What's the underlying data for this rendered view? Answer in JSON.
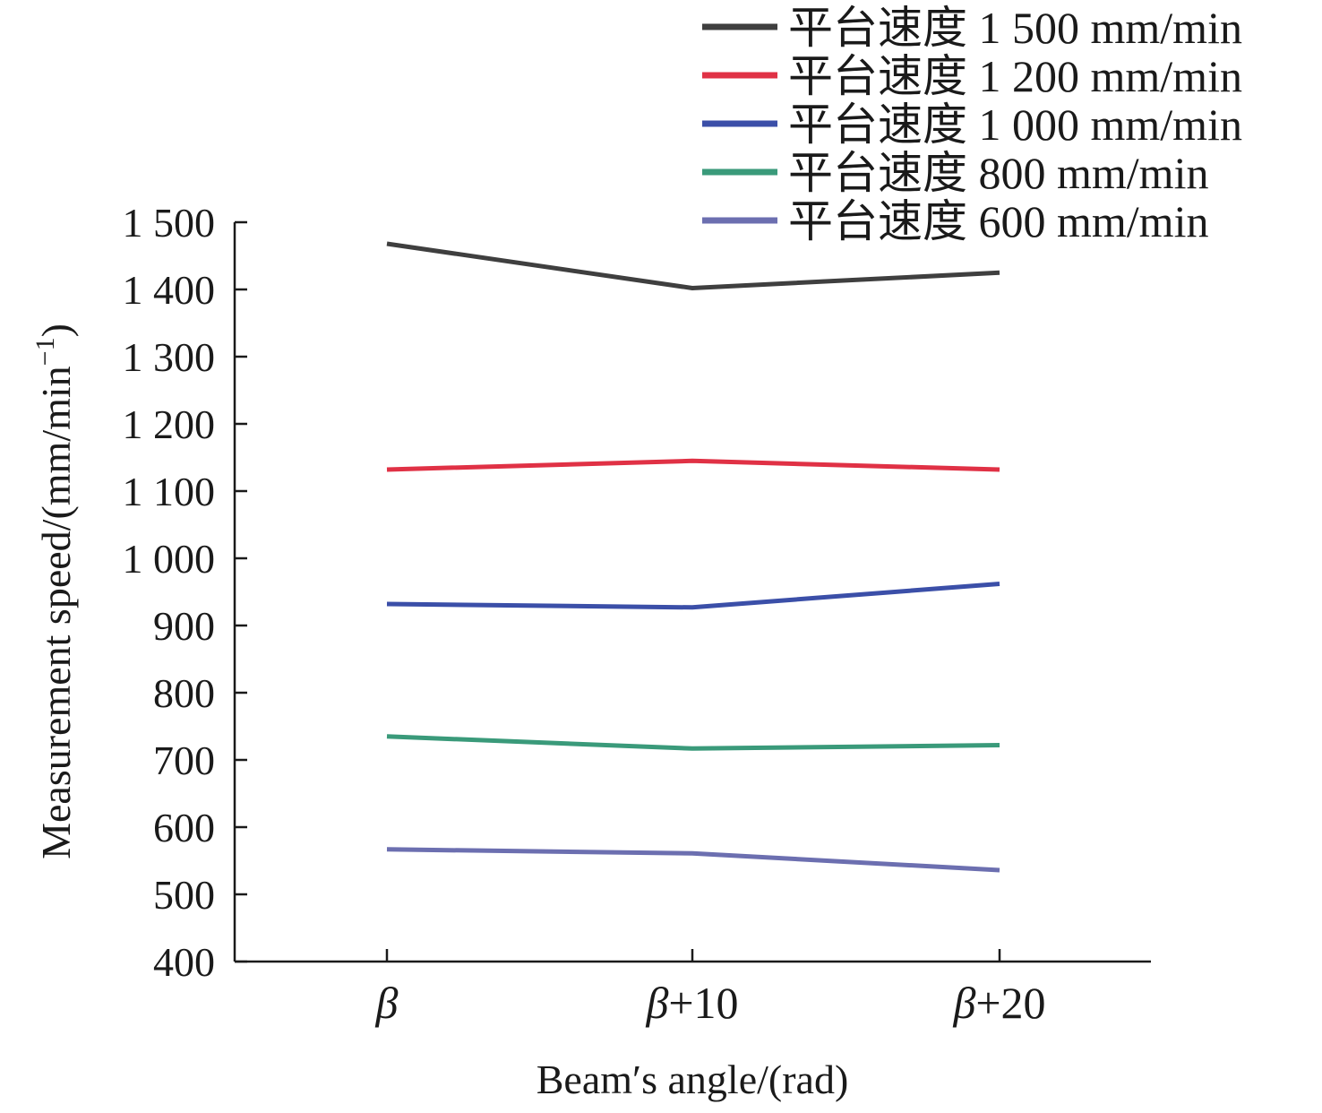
{
  "chart_data": {
    "type": "line",
    "title": "",
    "xlabel": "Beam′s angle/(rad)",
    "ylabel": "Measurement speed/(mm/min",
    "ylabel_superscript": "−1",
    "ylabel_close": ")",
    "ylim": [
      400,
      1500
    ],
    "yticks": [
      400,
      500,
      600,
      700,
      800,
      900,
      1000,
      1100,
      1200,
      1300,
      1400,
      1500
    ],
    "ytick_labels": [
      "400",
      "500",
      "600",
      "700",
      "800",
      "900",
      "1 000",
      "1 100",
      "1 200",
      "1 300",
      "1 400",
      "1 500"
    ],
    "categories": [
      "β",
      "β+10",
      "β+20"
    ],
    "grid": false,
    "legend_position": "top-right",
    "series": [
      {
        "name": "平台速度 1 500 mm/min",
        "color": "#3f3f3f",
        "values": [
          1468,
          1402,
          1425
        ]
      },
      {
        "name": "平台速度 1 200 mm/min",
        "color": "#e03145",
        "values": [
          1132,
          1145,
          1132
        ]
      },
      {
        "name": "平台速度 1 000 mm/min",
        "color": "#3b4fa8",
        "values": [
          932,
          927,
          962
        ]
      },
      {
        "name": "平台速度 800 mm/min",
        "color": "#3a9a7a",
        "values": [
          735,
          717,
          722
        ]
      },
      {
        "name": "平台速度 600 mm/min",
        "color": "#6c6fb0",
        "values": [
          567,
          561,
          536
        ]
      }
    ]
  }
}
